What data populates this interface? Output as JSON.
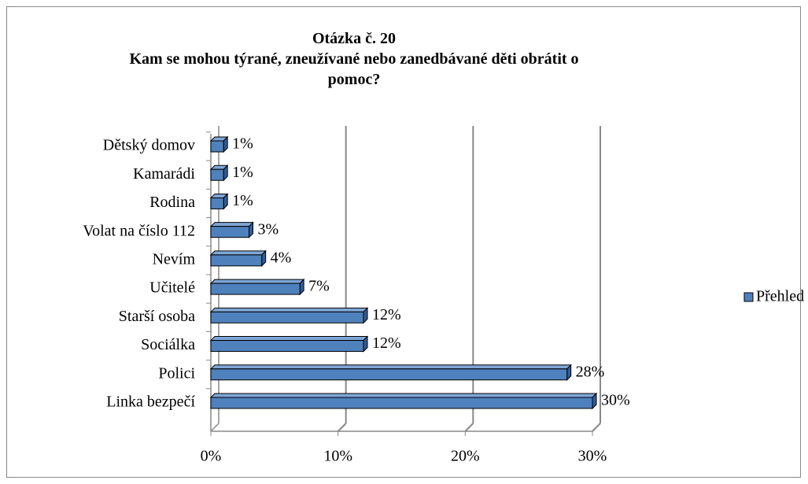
{
  "chart_data": {
    "type": "bar",
    "orientation": "horizontal",
    "title": "Otázka č. 20",
    "subtitle": "Kam se mohou týrané, zneužívané nebo zanedbávané děti obrátit o pomoc?",
    "categories": [
      "Dětský domov",
      "Kamarádi",
      "Rodina",
      "Volat na číslo 112",
      "Nevím",
      "Učitelé",
      "Starší osoba",
      "Sociálka",
      "Polici",
      "Linka bezpečí"
    ],
    "series": [
      {
        "name": "Přehled odpovědí",
        "color": "#4f81bd",
        "values": [
          1,
          1,
          1,
          3,
          4,
          7,
          12,
          12,
          28,
          30
        ],
        "value_labels": [
          "1%",
          "1%",
          "1%",
          "3%",
          "4%",
          "7%",
          "12%",
          "12%",
          "28%",
          "30%"
        ]
      }
    ],
    "xlim": [
      0,
      30
    ],
    "xticks": [
      {
        "value": 0,
        "label": "0%"
      },
      {
        "value": 10,
        "label": "10%"
      },
      {
        "value": 20,
        "label": "20%"
      },
      {
        "value": 30,
        "label": "30%"
      }
    ],
    "grid": true,
    "legend": "right"
  }
}
